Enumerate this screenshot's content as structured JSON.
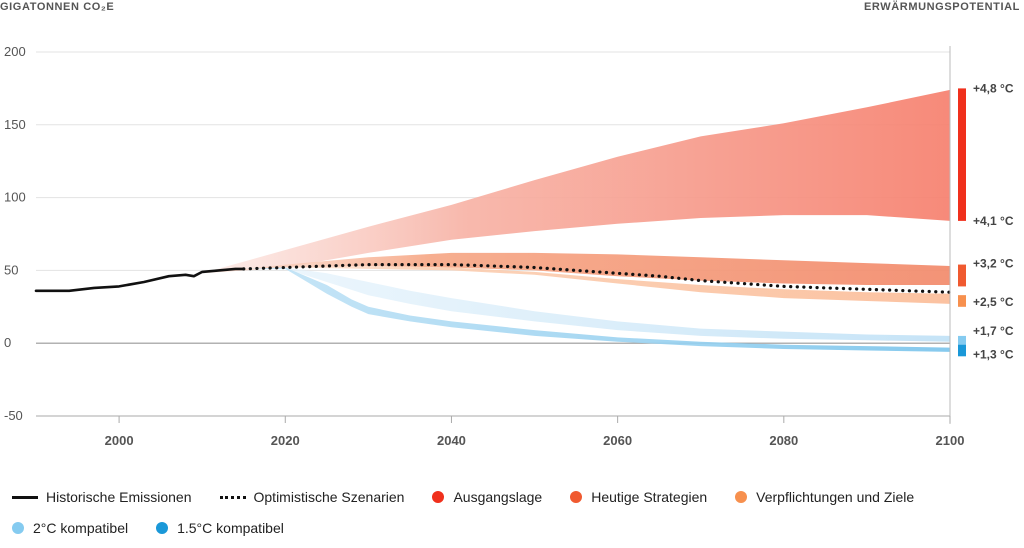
{
  "header": {
    "left_title": "GIGATONNEN CO₂E",
    "right_title": "ERWÄRMUNGSPOTENTIAL"
  },
  "chart_data": {
    "type": "area",
    "ylabel": "GIGATONNEN CO₂E",
    "y2label": "ERWÄRMUNGSPOTENTIAL",
    "xlim": [
      1990,
      2100
    ],
    "ylim": [
      -50,
      200
    ],
    "x_ticks": [
      2000,
      2020,
      2040,
      2060,
      2080,
      2100
    ],
    "y_ticks": [
      -50,
      0,
      50,
      100,
      150,
      200
    ],
    "grid": "horizontal",
    "legend": "bottom",
    "series": [
      {
        "name": "Historische Emissionen",
        "kind": "line",
        "color": "#111111",
        "x": [
          1990,
          1994,
          1997,
          2000,
          2003,
          2006,
          2008,
          2009,
          2010,
          2012,
          2014,
          2015
        ],
        "y": [
          36,
          36,
          38,
          39,
          42,
          46,
          47,
          46,
          49,
          50,
          51,
          51
        ]
      },
      {
        "name": "Optimistische Szenarien",
        "kind": "dotted-line",
        "color": "#111111",
        "x": [
          2015,
          2020,
          2025,
          2030,
          2035,
          2040,
          2045,
          2050,
          2055,
          2060,
          2065,
          2070,
          2075,
          2080,
          2085,
          2090,
          2095,
          2100
        ],
        "y": [
          51,
          52,
          53,
          54,
          54,
          54,
          53,
          52,
          50,
          48,
          46,
          43,
          41,
          39,
          38,
          37,
          36,
          35
        ]
      },
      {
        "name": "Ausgangslage",
        "kind": "band",
        "color": "#f28070",
        "x": [
          2010,
          2020,
          2030,
          2040,
          2050,
          2060,
          2070,
          2080,
          2090,
          2100
        ],
        "upper": [
          48,
          64,
          80,
          95,
          112,
          128,
          142,
          151,
          162,
          174
        ],
        "lower": [
          48,
          52,
          62,
          71,
          77,
          82,
          86,
          88,
          88,
          84
        ]
      },
      {
        "name": "Heutige Strategien",
        "kind": "band",
        "color": "#f08a6c",
        "x": [
          2010,
          2020,
          2030,
          2040,
          2050,
          2060,
          2070,
          2080,
          2090,
          2100
        ],
        "upper": [
          48,
          54,
          59,
          62,
          62,
          61,
          59,
          57,
          55,
          53
        ],
        "lower": [
          48,
          52,
          53,
          52,
          50,
          46,
          43,
          41,
          40,
          40
        ]
      },
      {
        "name": "Verpflichtungen und Ziele",
        "kind": "band",
        "color": "#fbbf9b",
        "x": [
          2010,
          2020,
          2030,
          2040,
          2050,
          2060,
          2070,
          2080,
          2090,
          2100
        ],
        "upper": [
          48,
          52,
          53,
          52,
          49,
          44,
          40,
          37,
          35,
          34
        ],
        "lower": [
          48,
          52,
          51,
          50,
          47,
          41,
          35,
          31,
          29,
          27
        ]
      },
      {
        "name": "2°C kompatibel",
        "kind": "band",
        "color": "#c6e3f6",
        "x": [
          2015,
          2020,
          2025,
          2030,
          2035,
          2040,
          2050,
          2060,
          2070,
          2080,
          2090,
          2100
        ],
        "upper": [
          51,
          52,
          48,
          42,
          36,
          31,
          22,
          15,
          10,
          8,
          6,
          5
        ],
        "lower": [
          51,
          51,
          42,
          33,
          27,
          22,
          15,
          9,
          5,
          3,
          2,
          1
        ]
      },
      {
        "name": "1.5°C kompatibel",
        "kind": "band",
        "color": "#8fcdee",
        "x": [
          2015,
          2020,
          2025,
          2028,
          2030,
          2035,
          2040,
          2050,
          2060,
          2070,
          2080,
          2090,
          2100
        ],
        "upper": [
          51,
          52,
          40,
          30,
          25,
          19,
          15,
          9,
          4,
          1,
          -1,
          -2,
          -3
        ],
        "lower": [
          51,
          51,
          34,
          25,
          20,
          15,
          11,
          5,
          1,
          -2,
          -4,
          -5,
          -6
        ]
      }
    ],
    "warming_markers": [
      {
        "series": "Ausgangslage",
        "from": 84,
        "to": 175,
        "color": "#f0301c",
        "label_top": "+4,8 °C",
        "label_bottom": "+4,1 °C"
      },
      {
        "series": "Heutige Strategien",
        "from": 39,
        "to": 54,
        "color": "#f05a30",
        "label_top": "+3,2 °C"
      },
      {
        "series": "Verpflichtungen und Ziele",
        "from": 25,
        "to": 33,
        "color": "#f7904e",
        "label_top": "+2,5 °C"
      },
      {
        "series": "2°C kompatibel",
        "from": -1,
        "to": 5,
        "color": "#85cbf0",
        "label_top": "+1,7 °C"
      },
      {
        "series": "1.5°C kompatibel",
        "from": -9,
        "to": -1,
        "color": "#1a98d8",
        "label_top": "+1,3 °C"
      }
    ]
  },
  "legend": {
    "rows": [
      [
        {
          "label": "Historische Emissionen",
          "type": "line",
          "color": "#111111"
        },
        {
          "label": "Optimistische Szenarien",
          "type": "dots",
          "color": "#111111"
        },
        {
          "label": "Ausgangslage",
          "type": "dot",
          "color": "#f0301c"
        },
        {
          "label": "Heutige Strategien",
          "type": "dot",
          "color": "#f05a30"
        },
        {
          "label": "Verpflichtungen und Ziele",
          "type": "dot",
          "color": "#f7904e"
        }
      ],
      [
        {
          "label": "2°C kompatibel",
          "type": "dot",
          "color": "#85cbf0"
        },
        {
          "label": "1.5°C kompatibel",
          "type": "dot",
          "color": "#1a98d8"
        }
      ]
    ]
  }
}
